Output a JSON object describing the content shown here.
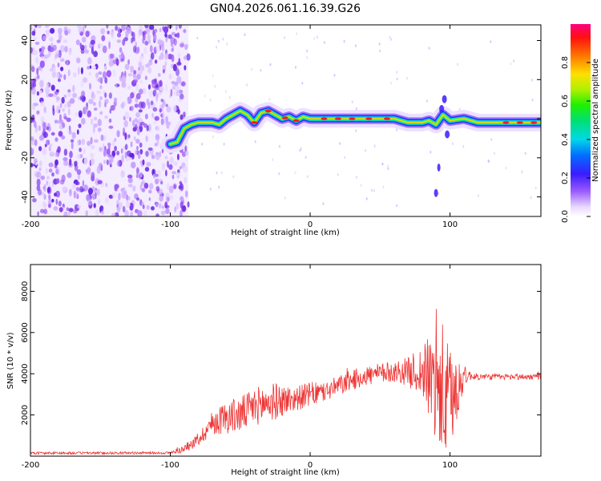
{
  "title": "GN04.2026.061.16.39.G26",
  "chart_data": [
    {
      "type": "heatmap",
      "name": "spectrogram",
      "xlabel": "Height of straight line (km)",
      "ylabel": "Frequency (Hz)",
      "xlim": [
        -200,
        165
      ],
      "ylim": [
        -50,
        48
      ],
      "xticks": [
        -200,
        -100,
        0,
        100
      ],
      "xtick_labels": [
        "-200",
        "-100",
        "0",
        "100"
      ],
      "yticks": [
        -40,
        -20,
        0,
        20,
        40
      ],
      "ytick_labels": [
        "-40",
        "-20",
        "0",
        "20",
        "40"
      ],
      "colorbar": {
        "label": "Normalized spectral amplitude",
        "range": [
          0,
          1
        ],
        "ticks": [
          0.0,
          0.2,
          0.4,
          0.6,
          0.8
        ],
        "tick_labels": [
          "0.0",
          "0.2",
          "0.4",
          "0.6",
          "0.8"
        ]
      },
      "noise_region_x": [
        -200,
        -87
      ],
      "ridge": {
        "x": [
          -100,
          -95,
          -90,
          -85,
          -80,
          -75,
          -70,
          -65,
          -60,
          -55,
          -50,
          -45,
          -40,
          -35,
          -30,
          -25,
          -20,
          -15,
          -10,
          -5,
          0,
          10,
          20,
          30,
          40,
          50,
          60,
          70,
          80,
          85,
          90,
          95,
          100,
          110,
          120,
          140,
          165
        ],
        "y": [
          -13,
          -12,
          -5,
          -3,
          -2,
          -2,
          -2,
          -3,
          0,
          2,
          4,
          2,
          -2,
          3,
          4,
          2,
          0,
          1,
          -1,
          1,
          0,
          0,
          0,
          0,
          0,
          0,
          0,
          -2,
          -2,
          -1,
          -3,
          2,
          -1,
          0,
          -2,
          -2,
          -2
        ]
      }
    },
    {
      "type": "line",
      "name": "snr",
      "xlabel": "Height of straight line (km)",
      "ylabel": "SNR (10 * v/v)",
      "xlim": [
        -200,
        165
      ],
      "ylim": [
        0,
        9300
      ],
      "xticks": [
        -200,
        -100,
        0,
        100
      ],
      "xtick_labels": [
        "-200",
        "-100",
        "0",
        "100"
      ],
      "yticks": [
        2000,
        4000,
        6000,
        8000
      ],
      "ytick_labels": [
        "2000",
        "4000",
        "6000",
        "8000"
      ],
      "color": "#ee3333",
      "x": [
        -200,
        -150,
        -100,
        -90,
        -80,
        -70,
        -60,
        -50,
        -40,
        -30,
        -20,
        -10,
        0,
        10,
        20,
        30,
        40,
        50,
        60,
        70,
        80,
        85,
        90,
        95,
        100,
        105,
        110,
        115,
        120,
        140,
        165
      ],
      "y": [
        150,
        150,
        160,
        350,
        800,
        1600,
        1900,
        2000,
        2400,
        2600,
        2700,
        2800,
        3000,
        3100,
        3400,
        3700,
        3900,
        4000,
        4100,
        4100,
        4100,
        3800,
        3500,
        2900,
        2600,
        3300,
        3900,
        3900,
        3850,
        3850,
        3850
      ],
      "spread": [
        60,
        60,
        60,
        200,
        300,
        600,
        800,
        900,
        900,
        1000,
        800,
        600,
        600,
        500,
        500,
        500,
        500,
        500,
        500,
        700,
        1300,
        2000,
        3200,
        3600,
        2600,
        1800,
        500,
        200,
        150,
        150,
        150
      ]
    }
  ]
}
